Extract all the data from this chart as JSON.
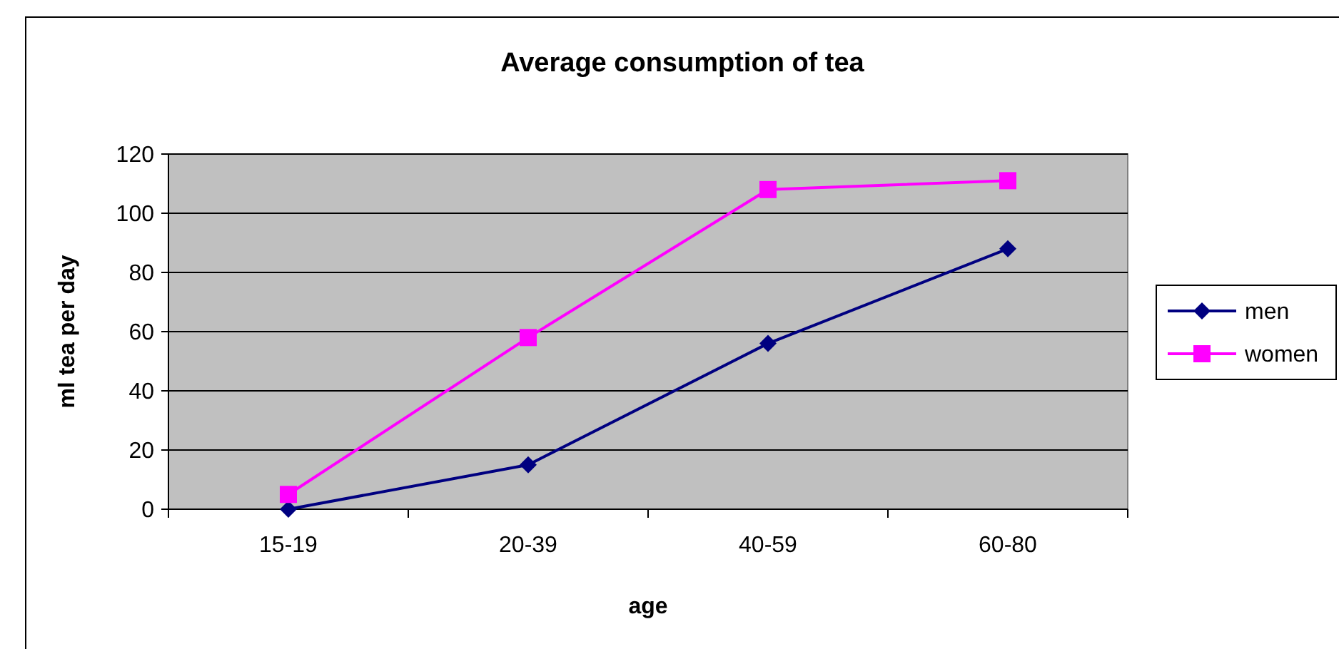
{
  "chart_data": {
    "type": "line",
    "title": "Average consumption of tea",
    "xlabel": "age",
    "ylabel": "ml tea per day",
    "categories": [
      "15-19",
      "20-39",
      "40-59",
      "60-80"
    ],
    "series": [
      {
        "name": "men",
        "color": "#000080",
        "values": [
          0,
          15,
          56,
          88
        ],
        "marker": "diamond"
      },
      {
        "name": "women",
        "color": "#ff00ff",
        "values": [
          5,
          58,
          108,
          111
        ],
        "marker": "square"
      }
    ],
    "ylim": [
      0,
      120
    ],
    "yticks": [
      0,
      20,
      40,
      60,
      80,
      100,
      120
    ],
    "grid": "y",
    "legend": "right",
    "line_style": "solid"
  }
}
